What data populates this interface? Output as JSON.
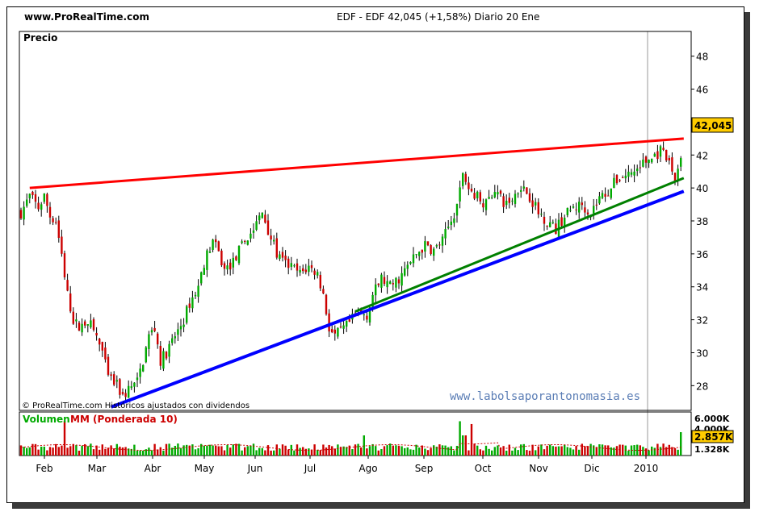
{
  "header": {
    "logo": "www.ProRealTime.com",
    "title": "EDF - EDF    42,045 (+1,58%)   Diario  20 Ene"
  },
  "price_panel": {
    "label": "Precio",
    "copyright": "© ProRealTime.com Históricos ajustados con dividendos",
    "watermark": "www.labolsaporantonomasia.es",
    "last_price": "42,045"
  },
  "volume_panel": {
    "label_volume": "Volumen",
    "label_ma": "MM (Ponderada 10)",
    "tick_top": "6.000K",
    "tick_mid": "4.000K",
    "tick_low": "1.328K",
    "last_volume": "2.857K"
  },
  "colors": {
    "up": "#00aa00",
    "down": "#cc0000",
    "resistance": "#ff0000",
    "support_green": "#008000",
    "support_blue": "#0000ff",
    "price_badge": "#ffcc00",
    "watermark": "#5a7db5"
  },
  "chart_data": {
    "type": "candlestick",
    "y_ticks": [
      28,
      30,
      32,
      34,
      36,
      38,
      40,
      42,
      44,
      46,
      48
    ],
    "x_labels": [
      "Feb",
      "Mar",
      "Abr",
      "May",
      "Jun",
      "Jul",
      "Ago",
      "Sep",
      "Oct",
      "Nov",
      "Dic",
      "2010"
    ],
    "ylim": [
      26.5,
      49.5
    ],
    "close_path": [
      [
        0,
        38.5
      ],
      [
        3,
        39.5
      ],
      [
        6,
        38.8
      ],
      [
        8,
        39.5
      ],
      [
        10,
        38.3
      ],
      [
        12,
        38.0
      ],
      [
        14,
        36.0
      ],
      [
        16,
        33.5
      ],
      [
        18,
        32.0
      ],
      [
        20,
        31.5
      ],
      [
        23,
        32.0
      ],
      [
        26,
        31.0
      ],
      [
        28,
        30.0
      ],
      [
        30,
        28.5
      ],
      [
        33,
        28.0
      ],
      [
        35,
        27.3
      ],
      [
        37,
        27.8
      ],
      [
        40,
        28.2
      ],
      [
        42,
        29.5
      ],
      [
        44,
        31.0
      ],
      [
        46,
        31.5
      ],
      [
        48,
        29.5
      ],
      [
        50,
        30.0
      ],
      [
        53,
        31.0
      ],
      [
        56,
        32.0
      ],
      [
        58,
        33.0
      ],
      [
        61,
        34.0
      ],
      [
        63,
        35.5
      ],
      [
        66,
        36.8
      ],
      [
        68,
        36.0
      ],
      [
        70,
        35.0
      ],
      [
        73,
        35.5
      ],
      [
        76,
        36.5
      ],
      [
        80,
        37.5
      ],
      [
        83,
        38.5
      ],
      [
        86,
        37.0
      ],
      [
        88,
        36.0
      ],
      [
        90,
        35.5
      ],
      [
        93,
        35.2
      ],
      [
        96,
        34.8
      ],
      [
        99,
        35.2
      ],
      [
        102,
        34.8
      ],
      [
        104,
        33.5
      ],
      [
        106,
        31.5
      ],
      [
        108,
        31.0
      ],
      [
        110,
        31.3
      ],
      [
        113,
        31.8
      ],
      [
        116,
        32.5
      ],
      [
        119,
        32.3
      ],
      [
        121,
        33.5
      ],
      [
        124,
        34.5
      ],
      [
        127,
        34.0
      ],
      [
        130,
        34.5
      ],
      [
        133,
        35.2
      ],
      [
        136,
        36.0
      ],
      [
        139,
        36.5
      ],
      [
        142,
        36.2
      ],
      [
        145,
        36.8
      ],
      [
        148,
        38.0
      ],
      [
        150,
        39.0
      ],
      [
        152,
        41.0
      ],
      [
        154,
        40.0
      ],
      [
        157,
        39.5
      ],
      [
        160,
        39.0
      ],
      [
        163,
        40.0
      ],
      [
        166,
        39.0
      ],
      [
        169,
        39.3
      ],
      [
        172,
        40.2
      ],
      [
        175,
        39.5
      ],
      [
        178,
        38.5
      ],
      [
        181,
        38.0
      ],
      [
        184,
        37.5
      ],
      [
        187,
        38.3
      ],
      [
        190,
        38.8
      ],
      [
        193,
        39.0
      ],
      [
        196,
        38.5
      ],
      [
        199,
        39.4
      ],
      [
        202,
        39.8
      ],
      [
        205,
        40.5
      ],
      [
        208,
        40.8
      ],
      [
        211,
        41.0
      ],
      [
        214,
        41.5
      ],
      [
        217,
        41.8
      ],
      [
        220,
        42.2
      ],
      [
        223,
        41.5
      ],
      [
        225,
        40.5
      ],
      [
        227,
        42.0
      ]
    ],
    "trendlines": [
      {
        "name": "resistencia",
        "from": [
          3,
          40.0
        ],
        "to": [
          228,
          43.0
        ]
      },
      {
        "name": "soporte-verde",
        "from": [
          115,
          32.5
        ],
        "to": [
          228,
          40.6
        ]
      },
      {
        "name": "soporte-azul",
        "from": [
          31,
          26.7
        ],
        "to": [
          228,
          39.8
        ]
      }
    ]
  }
}
